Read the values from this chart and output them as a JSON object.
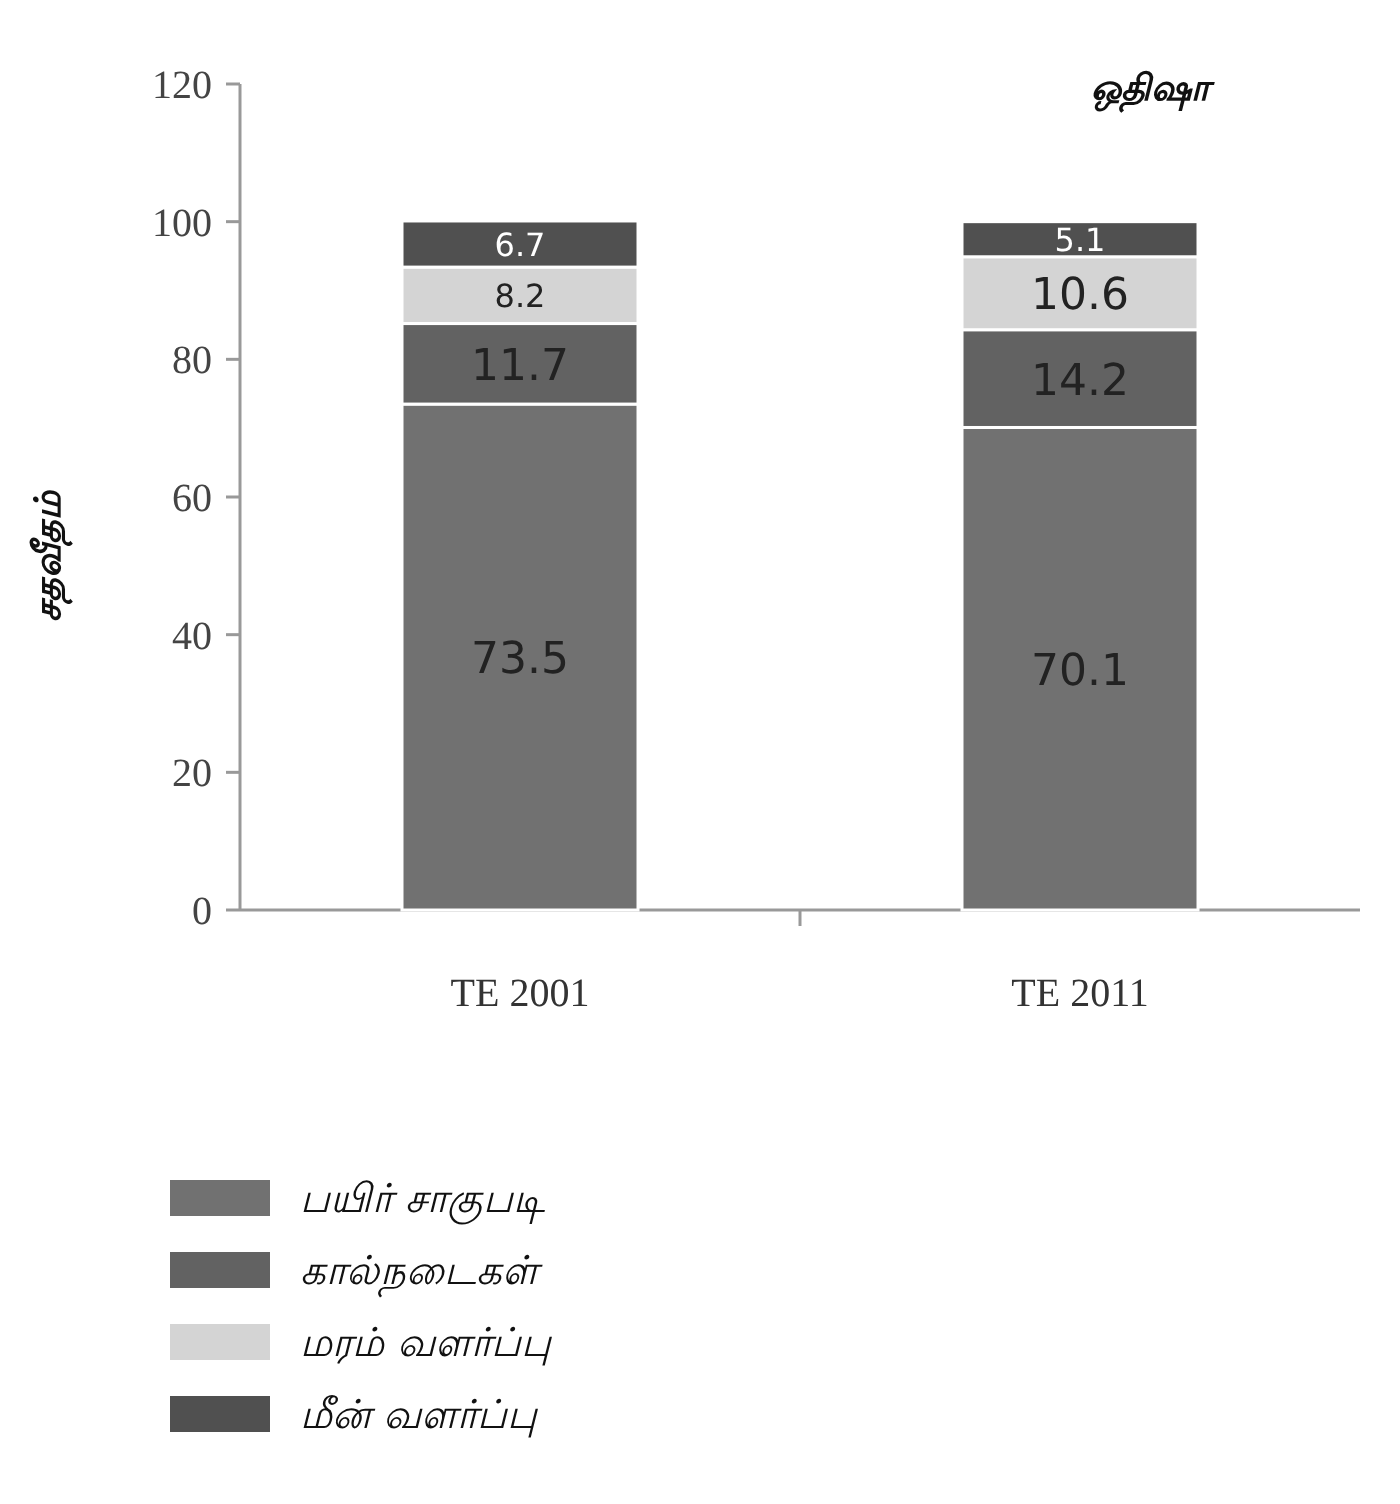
{
  "chart_data": {
    "type": "bar",
    "stacked": true,
    "title": "ஒதிஷா",
    "ylabel": "சதவீதம்",
    "categories": [
      "TE 2001",
      "TE 2011"
    ],
    "series": [
      {
        "name": "பயிர் சாகுபடி",
        "color": "#717171",
        "values": [
          73.5,
          70.1
        ]
      },
      {
        "name": "கால்நடைகள்",
        "color": "#626262",
        "values": [
          11.7,
          14.2
        ]
      },
      {
        "name": "மரம் வளர்ப்பு",
        "color": "#d4d4d4",
        "values": [
          8.2,
          10.6
        ]
      },
      {
        "name": "மீன் வளர்ப்பு",
        "color": "#505050",
        "values": [
          6.7,
          5.1
        ]
      }
    ],
    "ylim": [
      0,
      120
    ],
    "yticks": [
      0,
      20,
      40,
      60,
      80,
      100,
      120
    ],
    "grid": false,
    "legend": "bottom left",
    "data_labels": true
  }
}
